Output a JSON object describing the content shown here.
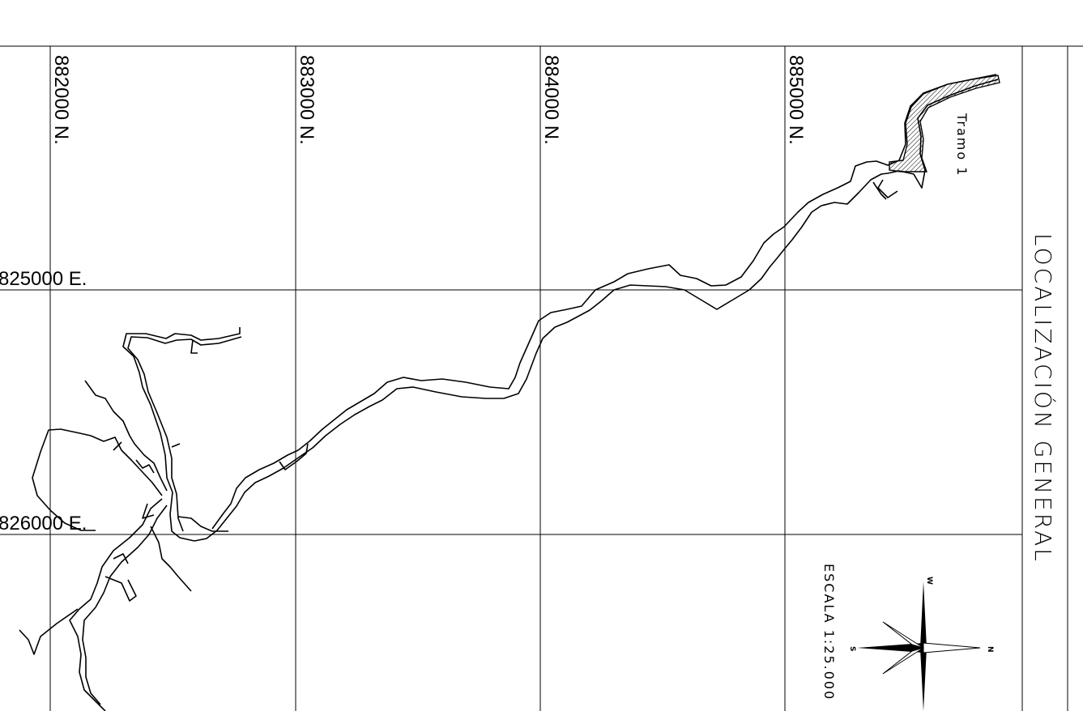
{
  "map": {
    "title": "LOCALIZACIÓN GENERAL",
    "section_label": "Tramo 1",
    "scale_label": "ESCALA 1:25.000",
    "northing_labels": [
      "882000 N.",
      "883000 N.",
      "884000 N.",
      "885000 N."
    ],
    "easting_labels": [
      "825000 E.",
      "826000 E."
    ],
    "compass": {
      "n": "N",
      "s": "S",
      "w": "W"
    }
  }
}
